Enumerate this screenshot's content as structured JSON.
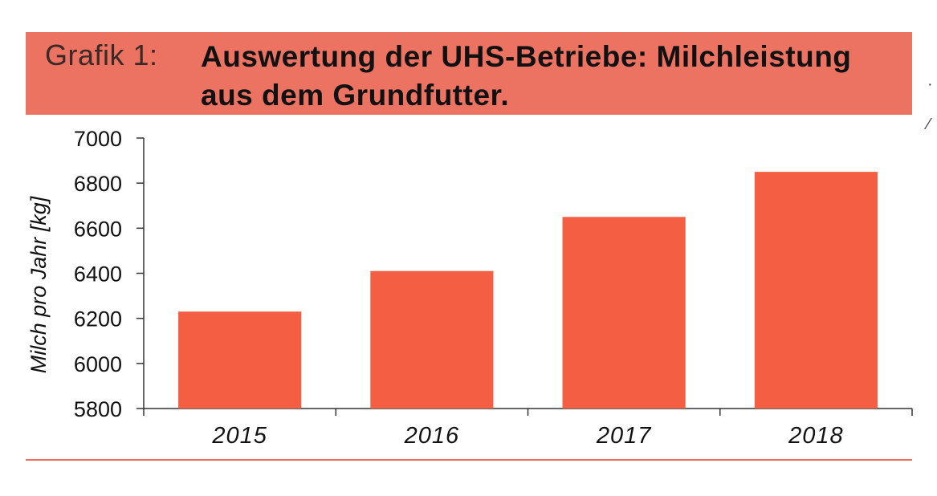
{
  "header": {
    "label": "Grafik 1:",
    "title": "Auswertung der UHS-Betriebe: Milchleistung aus dem Grundfutter.",
    "banner_color": "#ec7262"
  },
  "chart_data": {
    "type": "bar",
    "title": "Auswertung der UHS-Betriebe: Milchleistung aus dem Grundfutter.",
    "categories": [
      "2015",
      "2016",
      "2017",
      "2018"
    ],
    "series": [
      {
        "name": "Milch pro Jahr [kg]",
        "values": [
          6230,
          6410,
          6650,
          6850
        ]
      }
    ],
    "xlabel": "",
    "ylabel": "Milch pro Jahr [kg]",
    "ylim": [
      5800,
      7000
    ],
    "yticks": [
      "5800",
      "6000",
      "6200",
      "6400",
      "6600",
      "6800",
      "7000"
    ],
    "grid": false,
    "legend": "none",
    "bar_color": "#f45e42"
  }
}
